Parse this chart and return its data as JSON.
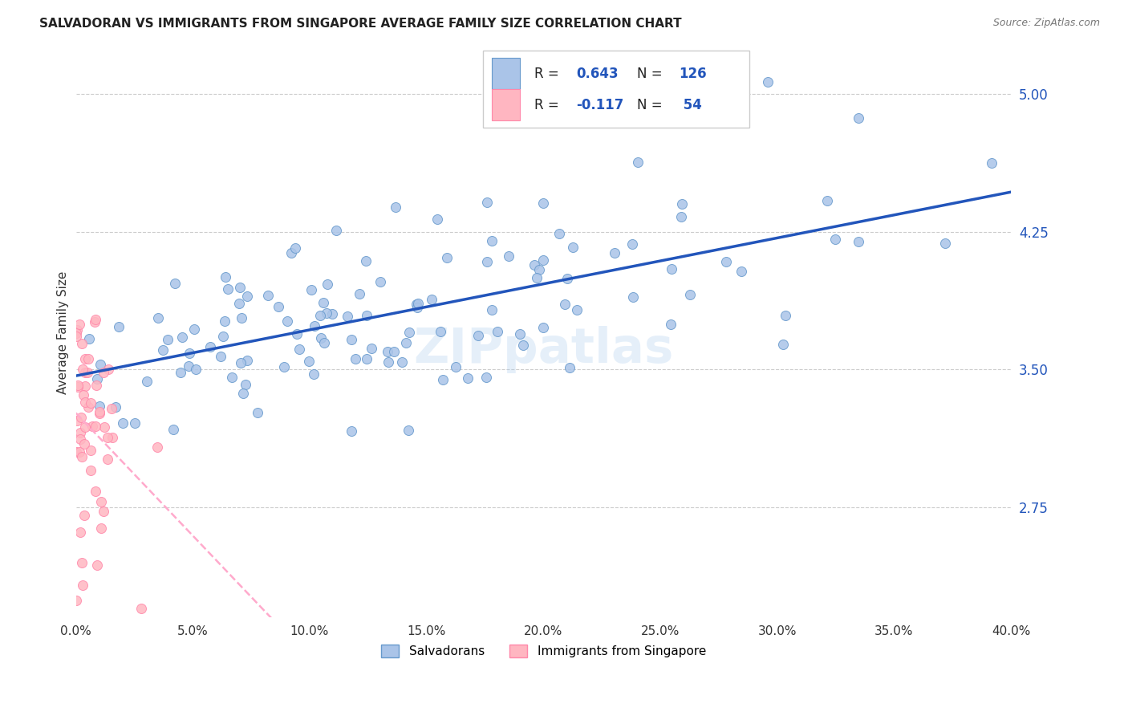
{
  "title": "SALVADORAN VS IMMIGRANTS FROM SINGAPORE AVERAGE FAMILY SIZE CORRELATION CHART",
  "source": "Source: ZipAtlas.com",
  "ylabel": "Average Family Size",
  "xlim": [
    0.0,
    0.4
  ],
  "ylim": [
    2.15,
    5.25
  ],
  "xtick_labels": [
    "0.0%",
    "5.0%",
    "10.0%",
    "15.0%",
    "20.0%",
    "25.0%",
    "30.0%",
    "35.0%",
    "40.0%"
  ],
  "xtick_vals": [
    0.0,
    0.05,
    0.1,
    0.15,
    0.2,
    0.25,
    0.3,
    0.35,
    0.4
  ],
  "ytick_vals_right": [
    5.0,
    4.25,
    3.5,
    2.75
  ],
  "ytick_labels_right": [
    "5.00",
    "4.25",
    "3.50",
    "2.75"
  ],
  "blue_R": 0.643,
  "blue_N": 126,
  "pink_R": -0.117,
  "pink_N": 54,
  "blue_face": "#AAC4E8",
  "blue_edge": "#6699CC",
  "pink_face": "#FFB6C1",
  "pink_edge": "#FF88AA",
  "blue_line_color": "#2255BB",
  "pink_line_color": "#FFAACC",
  "watermark": "ZIPpatlas",
  "watermark_color": "#AACCEE",
  "grid_color": "#CCCCCC",
  "title_color": "#222222",
  "source_color": "#777777",
  "ylabel_color": "#333333",
  "right_tick_color": "#2255BB",
  "legend_label1": "Salvadorans",
  "legend_label2": "Immigrants from Singapore",
  "blue_seed": 42,
  "pink_seed": 7
}
